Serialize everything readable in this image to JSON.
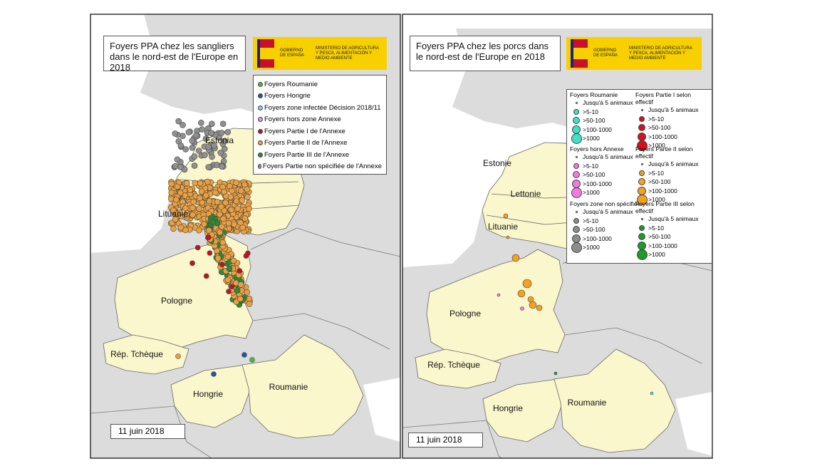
{
  "panels": [
    {
      "title": "Foyers PPA chez les sangliers dans le nord-est de l'Europe en 2018",
      "logo": {
        "gobierno": "GOBIERNO DE ESPAÑA",
        "ministerio": "MINISTERIO DE AGRICULTURA Y PESCA, ALIMENTACIÓN Y MEDIO AMBIENTE"
      },
      "legend": [
        {
          "label": "Foyers Roumanie",
          "color": "#4cbb3c"
        },
        {
          "label": "Foyers Hongrie",
          "color": "#2456a8"
        },
        {
          "label": "Foyers zone infectée Décision 2018/11",
          "color": "#8ecbe8"
        },
        {
          "label": "Foyers hors zone Annexe",
          "color": "#ec90d8"
        },
        {
          "label": "Foyers Partie I de l'Annexe",
          "color": "#c0141c"
        },
        {
          "label": "Foyers Partie II de l'Annexe",
          "color": "#eaa040"
        },
        {
          "label": "Foyers Partie III de l'Annexe",
          "color": "#2e8a32"
        },
        {
          "label": "Foyers Partie non spécifiée de l'Annexe",
          "color": "#909090"
        }
      ],
      "countries": [
        "Estonia",
        "Lituanie",
        "Pologne",
        "Rép. Tchèque",
        "Hongrie",
        "Roumanie"
      ],
      "date": "11 juin 2018"
    },
    {
      "title": "Foyers PPA chez les porcs dans le nord-est de l'Europe en 2018",
      "logo": {
        "gobierno": "GOBIERNO DE ESPAÑA",
        "ministerio": "MINISTERIO DE AGRICULTURA Y PESCA, ALIMENTACIÓN Y MEDIO AMBIENTE"
      },
      "legend_groups": [
        {
          "title": "Foyers Roumanie",
          "color": "#3ee0c8"
        },
        {
          "title": "Foyers hors Annexe",
          "color": "#f07ce0"
        },
        {
          "title": "Foyers zone non spécifiée",
          "color": "#8c8c8c"
        },
        {
          "title": "Foyers Partie I selon effectif",
          "color": "#d8101c"
        },
        {
          "title": "Foyers Partie II selon effectif",
          "color": "#f4a020"
        },
        {
          "title": "Foyers Partie III selon effectif",
          "color": "#1e9a28"
        }
      ],
      "size_classes": [
        "Jusqu'à 5 animaux",
        ">5-10",
        ">50-100",
        ">100-1000",
        ">1000"
      ],
      "countries": [
        "Estonie",
        "Lettonie",
        "Lituanie",
        "Pologne",
        "Rép. Tchèque",
        "Hongrie",
        "Roumanie"
      ],
      "date": "11 juin 2018"
    }
  ]
}
